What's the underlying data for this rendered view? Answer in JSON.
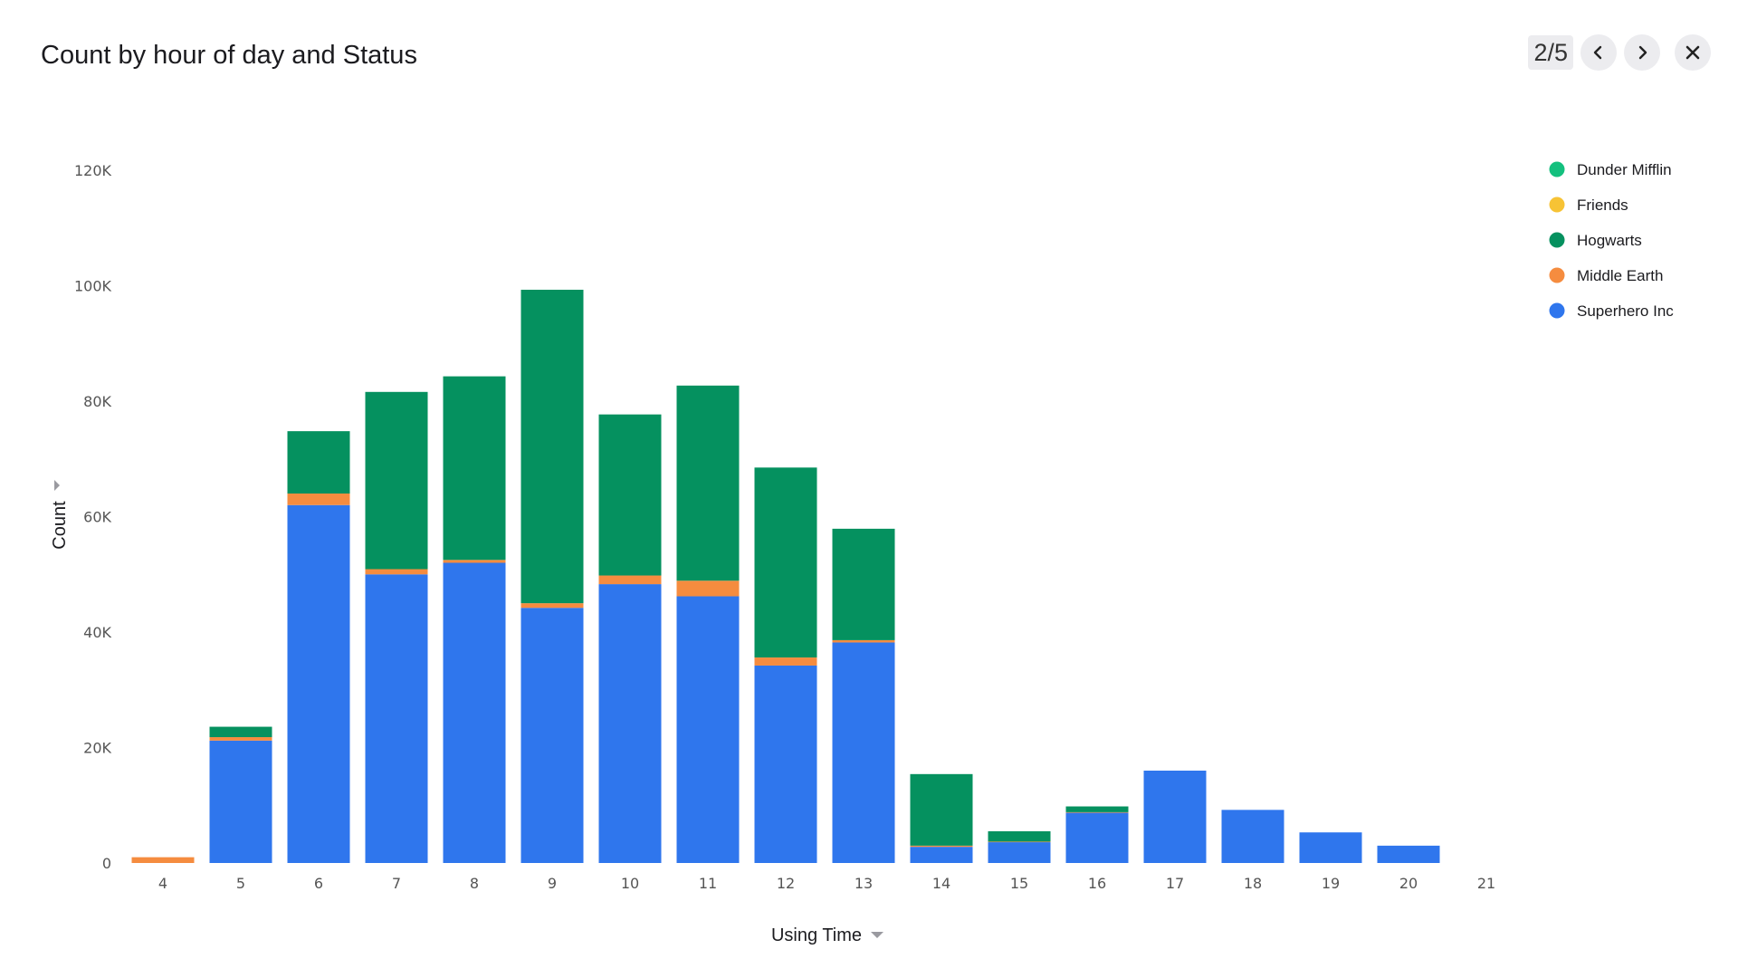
{
  "header": {
    "title": "Count by hour of day and Status",
    "pager": "2/5"
  },
  "icons": {
    "prev": "chevron-left-icon",
    "next": "chevron-right-icon",
    "close": "close-icon",
    "y_axis_toggle": "caret-right-icon",
    "x_axis_dropdown": "caret-down-icon"
  },
  "chart_data": {
    "type": "bar",
    "stacked": true,
    "xlabel": "Using Time",
    "ylabel": "Count",
    "ylim": [
      0,
      120000
    ],
    "yticks": [
      0,
      20000,
      40000,
      60000,
      80000,
      100000,
      120000
    ],
    "ytick_labels": [
      "0",
      "20K",
      "40K",
      "60K",
      "80K",
      "100K",
      "120K"
    ],
    "grid": false,
    "legend_position": "right",
    "categories": [
      "4",
      "5",
      "6",
      "7",
      "8",
      "9",
      "10",
      "11",
      "12",
      "13",
      "14",
      "15",
      "16",
      "17",
      "18",
      "19",
      "20",
      "21"
    ],
    "series": [
      {
        "name": "Superhero Inc",
        "color": "#2f76ed",
        "values": [
          0,
          21200,
          62000,
          50000,
          52000,
          44200,
          48300,
          46200,
          34200,
          38200,
          2800,
          3600,
          8700,
          16000,
          9200,
          5300,
          3000,
          0
        ]
      },
      {
        "name": "Middle Earth",
        "color": "#f58c3f",
        "values": [
          1000,
          600,
          2000,
          900,
          500,
          800,
          1500,
          2700,
          1400,
          400,
          200,
          100,
          100,
          0,
          0,
          0,
          0,
          0
        ]
      },
      {
        "name": "Hogwarts",
        "color": "#05915f",
        "values": [
          0,
          1800,
          10800,
          30700,
          31800,
          54300,
          27900,
          33800,
          32900,
          19300,
          12400,
          1800,
          1000,
          0,
          0,
          0,
          0,
          0
        ]
      },
      {
        "name": "Friends",
        "color": "#f7c335",
        "values": [
          0,
          0,
          0,
          0,
          0,
          0,
          0,
          0,
          0,
          0,
          0,
          0,
          0,
          0,
          0,
          0,
          0,
          0
        ]
      },
      {
        "name": "Dunder Mifflin",
        "color": "#14c07e",
        "values": [
          0,
          0,
          0,
          0,
          0,
          0,
          0,
          0,
          0,
          0,
          0,
          0,
          0,
          0,
          0,
          0,
          0,
          0
        ]
      }
    ],
    "legend": [
      {
        "name": "Dunder Mifflin",
        "color": "#14c07e"
      },
      {
        "name": "Friends",
        "color": "#f7c335"
      },
      {
        "name": "Hogwarts",
        "color": "#05915f"
      },
      {
        "name": "Middle Earth",
        "color": "#f58c3f"
      },
      {
        "name": "Superhero Inc",
        "color": "#2f76ed"
      }
    ]
  }
}
